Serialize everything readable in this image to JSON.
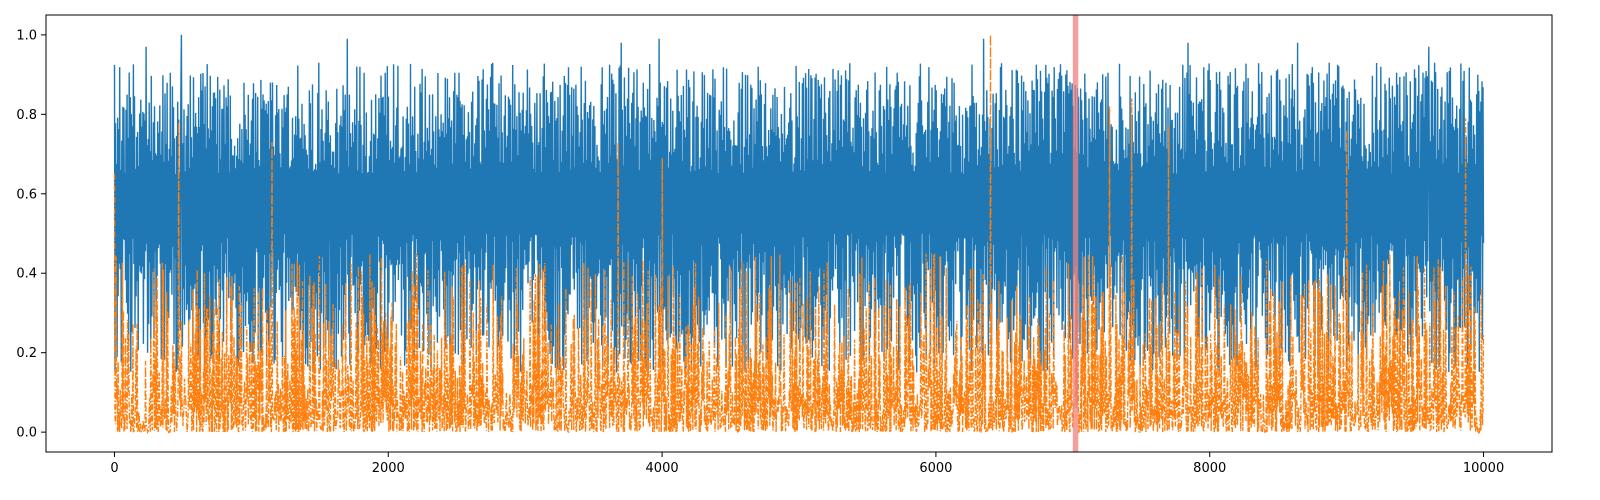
{
  "chart_data": {
    "type": "line",
    "title": "",
    "xlabel": "",
    "ylabel": "",
    "xlim": [
      -500,
      10500
    ],
    "ylim": [
      -0.05,
      1.05
    ],
    "x_ticks": [
      0,
      2000,
      4000,
      6000,
      8000,
      10000
    ],
    "x_tick_labels": [
      "0",
      "2000",
      "4000",
      "6000",
      "8000",
      "10000"
    ],
    "y_ticks": [
      0.0,
      0.2,
      0.4,
      0.6,
      0.8,
      1.0
    ],
    "y_tick_labels": [
      "0.0",
      "0.2",
      "0.4",
      "0.6",
      "0.8",
      "1.0"
    ],
    "grid": false,
    "x_range": [
      0,
      10000
    ],
    "series": [
      {
        "color": "#1f77b4",
        "line_style": "solid",
        "description_values": {
          "typical_min": 0.15,
          "typical_max": 0.93,
          "center": 0.6,
          "max": 1.0
        },
        "peaks": [
          [
            490,
            1.0
          ],
          [
            230,
            0.97
          ],
          [
            1700,
            0.99
          ],
          [
            3700,
            0.98
          ],
          [
            3980,
            0.99
          ],
          [
            6350,
            0.99
          ],
          [
            7840,
            0.98
          ],
          [
            8640,
            0.98
          ],
          [
            9600,
            0.97
          ]
        ]
      },
      {
        "color": "#ff7f0e",
        "line_style": "dashdot",
        "description_values": {
          "typical_min": 0.0,
          "typical_max": 0.45,
          "center": 0.15,
          "max": 1.0
        },
        "peaks": [
          [
            0,
            0.65
          ],
          [
            470,
            0.78
          ],
          [
            1150,
            0.73
          ],
          [
            3680,
            0.73
          ],
          [
            4000,
            0.69
          ],
          [
            6400,
            1.0
          ],
          [
            7270,
            0.82
          ],
          [
            7430,
            0.84
          ],
          [
            7700,
            0.77
          ],
          [
            9000,
            0.76
          ],
          [
            9870,
            0.79
          ]
        ]
      }
    ],
    "vertical_band": {
      "x_start": 7000,
      "x_end": 7040,
      "color": "#f08080"
    }
  }
}
